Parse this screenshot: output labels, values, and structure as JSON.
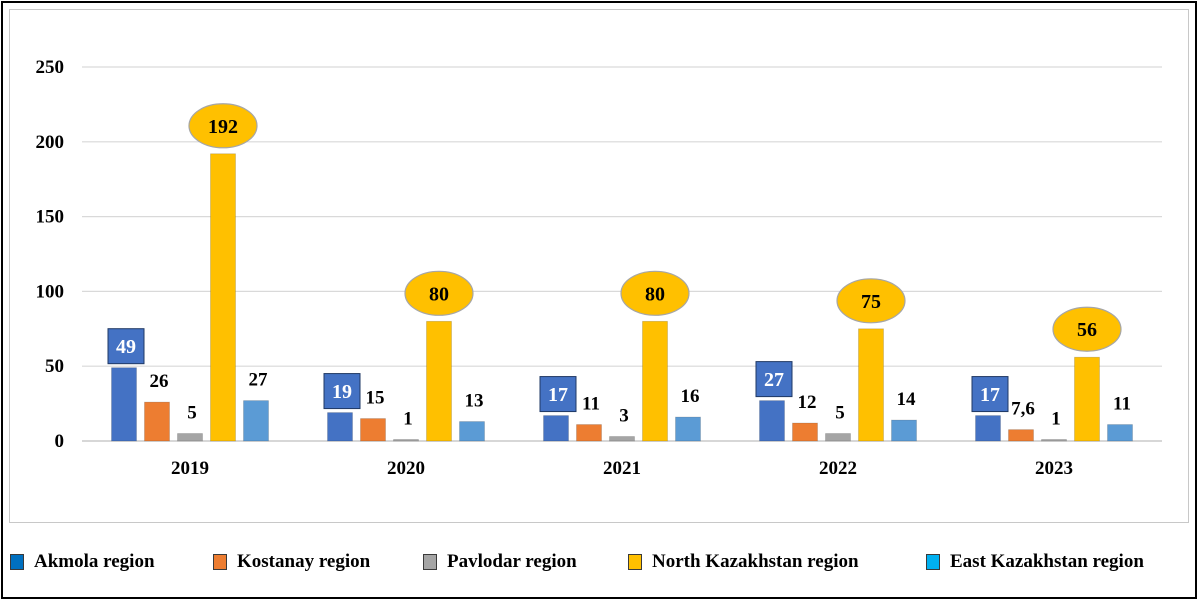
{
  "chart_data": {
    "type": "bar",
    "categories": [
      "2019",
      "2020",
      "2021",
      "2022",
      "2023"
    ],
    "series": [
      {
        "name": "Akmola region",
        "color": "#4472c4",
        "values": [
          49,
          19,
          17,
          27,
          17
        ],
        "labels": [
          "49",
          "19",
          "17",
          "27",
          "17"
        ],
        "label_style": "box"
      },
      {
        "name": "Kostanay region",
        "color": "#ed7d31",
        "values": [
          26,
          15,
          11,
          12,
          7.6
        ],
        "labels": [
          "26",
          "15",
          "11",
          "12",
          "7,6"
        ],
        "label_style": "plain"
      },
      {
        "name": "Pavlodar region",
        "color": "#a5a5a5",
        "values": [
          5,
          1,
          3,
          5,
          1
        ],
        "labels": [
          "5",
          "1",
          "3",
          "5",
          "1"
        ],
        "label_style": "plain"
      },
      {
        "name": "North Kazakhstan region",
        "color": "#ffc000",
        "values": [
          192,
          80,
          80,
          75,
          56
        ],
        "labels": [
          "192",
          "80",
          "80",
          "75",
          "56"
        ],
        "label_style": "ellipse"
      },
      {
        "name": "East Kazakhstan region",
        "color": "#5b9bd5",
        "values": [
          27,
          13,
          16,
          14,
          11
        ],
        "labels": [
          "27",
          "13",
          "16",
          "14",
          "11"
        ],
        "label_style": "plain"
      }
    ],
    "yticks": [
      "0",
      "50",
      "100",
      "150",
      "200",
      "250"
    ],
    "ylim": [
      0,
      250
    ],
    "grid": true,
    "legend_position": "bottom",
    "title": "",
    "xlabel": "",
    "ylabel": ""
  },
  "legend": {
    "items": [
      {
        "label": "Akmola region",
        "color": "#0070c0"
      },
      {
        "label": "Kostanay region",
        "color": "#ed7d31"
      },
      {
        "label": "Pavlodar region",
        "color": "#a5a5a5"
      },
      {
        "label": "North Kazakhstan region",
        "color": "#ffc000"
      },
      {
        "label": "East Kazakhstan region",
        "color": "#00b0f0"
      }
    ]
  }
}
